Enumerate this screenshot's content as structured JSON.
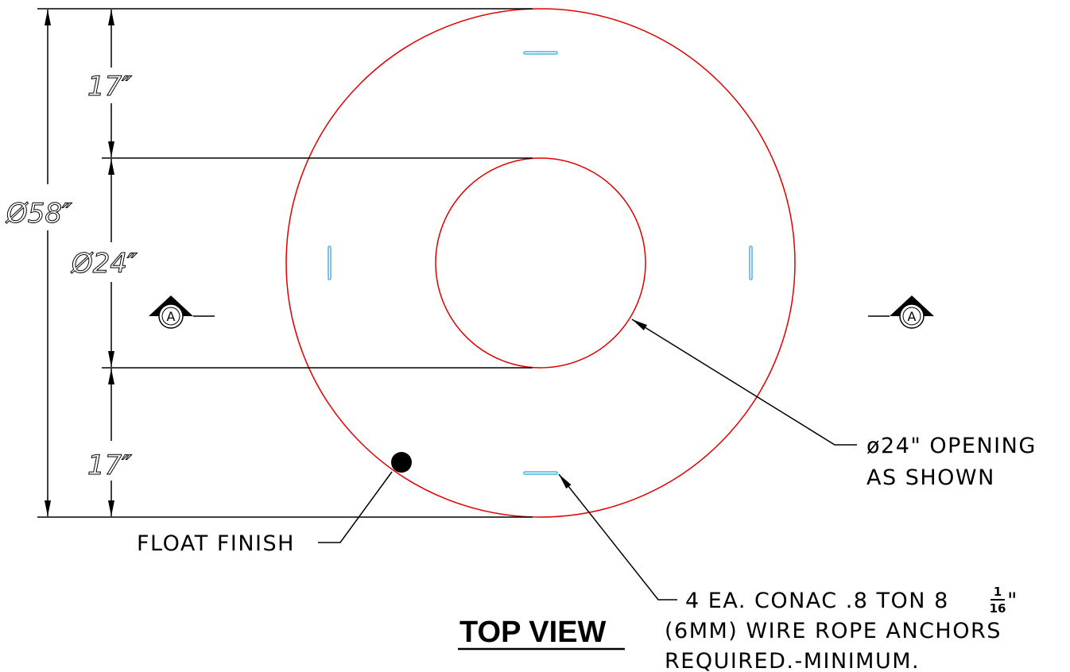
{
  "colors": {
    "outline": "#e00000",
    "anchor": "#4ab4e0",
    "ink": "#000000"
  },
  "dimensions": {
    "overall_diameter": "Ø58″",
    "inner_diameter": "Ø24″",
    "top_offset": "17″",
    "bottom_offset": "17″"
  },
  "section_marker": {
    "letter": "A"
  },
  "callouts": {
    "float_finish": "FLOAT FINISH",
    "opening_line1": "ø24\" OPENING",
    "opening_line2": "AS SHOWN",
    "anchors_line1": "4 EA. CONAC .8 TON 8",
    "anchors_frac_num": "1",
    "anchors_frac_den": "16",
    "anchors_quote": "\"",
    "anchors_line2": "(6MM) WIRE ROPE ANCHORS",
    "anchors_line3": "REQUIRED.-MINIMUM."
  },
  "title": "TOP VIEW"
}
